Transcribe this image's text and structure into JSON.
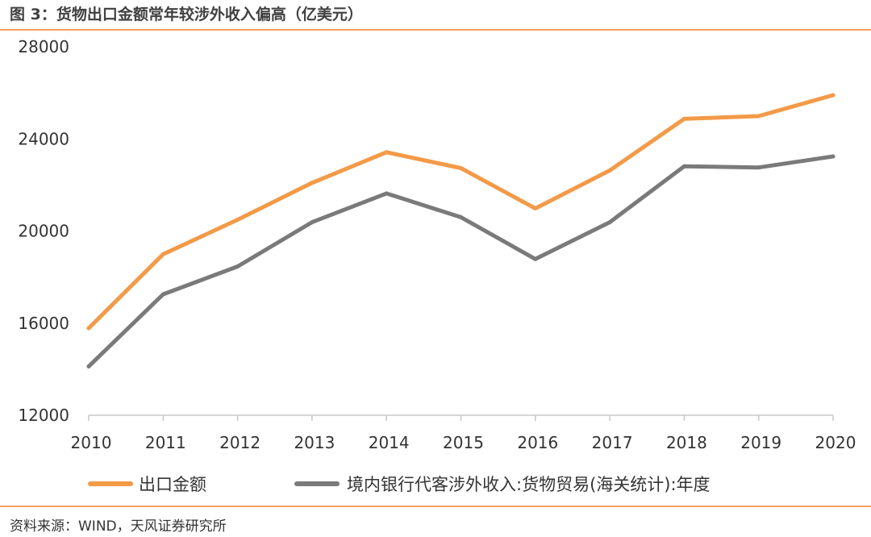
{
  "figure": {
    "title": "图 3：货物出口金额常年较涉外收入偏高（亿美元）",
    "source": "资料来源：WIND，天风证券研究所"
  },
  "chart_data": {
    "type": "line",
    "x": [
      "2010",
      "2011",
      "2012",
      "2013",
      "2014",
      "2015",
      "2016",
      "2017",
      "2018",
      "2019",
      "2020"
    ],
    "y_ticks": [
      "12000",
      "16000",
      "20000",
      "24000",
      "28000"
    ],
    "ylim": [
      12000,
      28000
    ],
    "grid": false,
    "legend_position": "bottom",
    "series": [
      {
        "name": "出口金额",
        "color": "#f39a48",
        "values": [
          15780,
          18990,
          20490,
          22090,
          23420,
          22730,
          20980,
          22630,
          24870,
          24990,
          25900
        ]
      },
      {
        "name": "境内银行代客涉外收入:货物贸易(海关统计):年度",
        "color": "#7a7a7a",
        "values": [
          14120,
          17250,
          18460,
          20380,
          21630,
          20600,
          18780,
          20380,
          22810,
          22760,
          23240
        ]
      }
    ]
  }
}
